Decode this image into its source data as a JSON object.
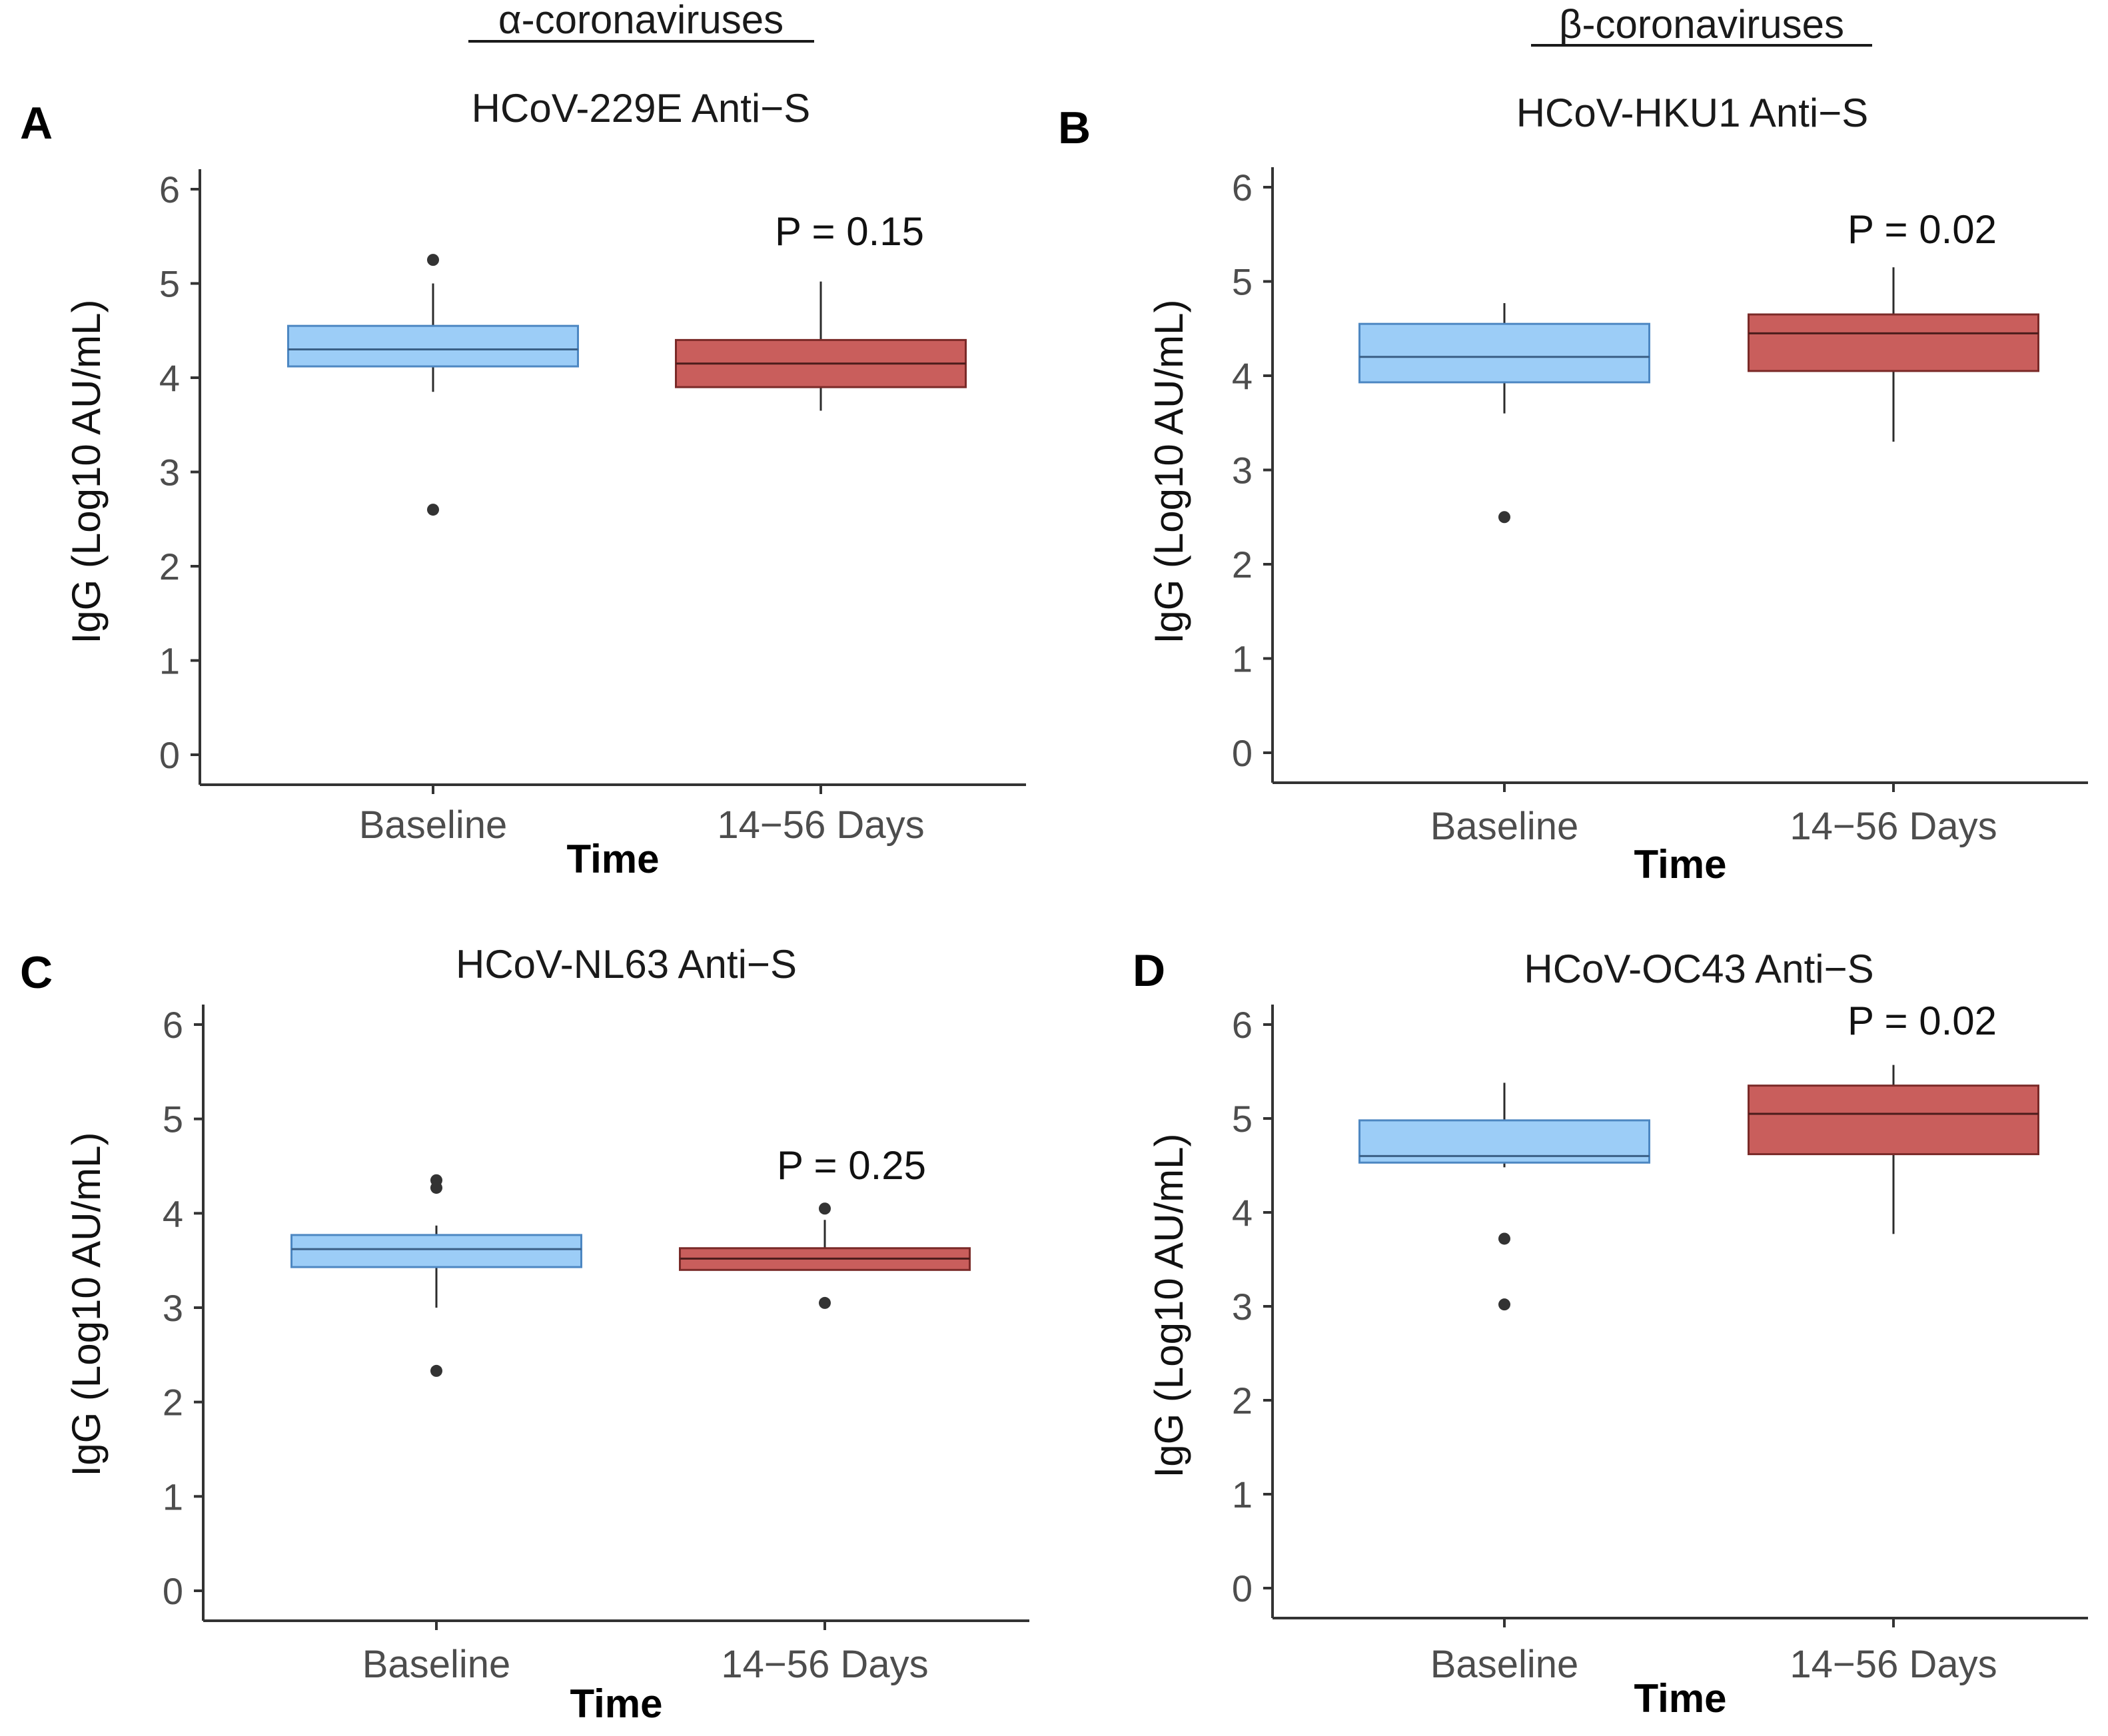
{
  "figure": {
    "groups": [
      {
        "label": "α-coronaviruses"
      },
      {
        "label": "β-coronaviruses"
      }
    ]
  },
  "colors": {
    "baseline_fill": "#9ccdf7",
    "baseline_stroke": "#4d87c2",
    "followup_fill": "#c95e5c",
    "followup_stroke": "#7a2a28",
    "whisker": "#2b2b2b",
    "outlier": "#333333",
    "axis": "#333333",
    "tick_text": "#4d4d4d",
    "title_text": "#1a1a1a"
  },
  "chart_data": [
    {
      "panel": "A",
      "type": "box",
      "title": "HCoV-229E Anti−S",
      "xlabel": "Time",
      "ylabel": "IgG (Log10 AU/mL)",
      "ylim": [
        0,
        6
      ],
      "yticks": [
        "0",
        "1",
        "2",
        "3",
        "4",
        "5",
        "6"
      ],
      "categories": [
        "Baseline",
        "14−56 Days"
      ],
      "pvalue": "P = 0.15",
      "boxes": [
        {
          "category": "Baseline",
          "whisker_low": 3.85,
          "q1": 4.12,
          "median": 4.3,
          "q3": 4.55,
          "whisker_high": 5.0,
          "outliers": [
            5.25,
            2.6
          ]
        },
        {
          "category": "14−56 Days",
          "whisker_low": 3.65,
          "q1": 3.9,
          "median": 4.15,
          "q3": 4.4,
          "whisker_high": 5.02,
          "outliers": []
        }
      ]
    },
    {
      "panel": "B",
      "type": "box",
      "title": "HCoV-HKU1 Anti−S",
      "xlabel": "Time",
      "ylabel": "IgG (Log10 AU/mL)",
      "ylim": [
        0,
        6
      ],
      "yticks": [
        "0",
        "1",
        "2",
        "3",
        "4",
        "5",
        "6"
      ],
      "categories": [
        "Baseline",
        "14−56 Days"
      ],
      "pvalue": "P = 0.02",
      "boxes": [
        {
          "category": "Baseline",
          "whisker_low": 3.6,
          "q1": 3.93,
          "median": 4.2,
          "q3": 4.55,
          "whisker_high": 4.77,
          "outliers": [
            2.5
          ]
        },
        {
          "category": "14−56 Days",
          "whisker_low": 3.3,
          "q1": 4.05,
          "median": 4.45,
          "q3": 4.65,
          "whisker_high": 5.15,
          "outliers": []
        }
      ]
    },
    {
      "panel": "C",
      "type": "box",
      "title": "HCoV-NL63 Anti−S",
      "xlabel": "Time",
      "ylabel": "IgG (Log10 AU/mL)",
      "ylim": [
        0,
        6
      ],
      "yticks": [
        "0",
        "1",
        "2",
        "3",
        "4",
        "5",
        "6"
      ],
      "categories": [
        "Baseline",
        "14−56 Days"
      ],
      "pvalue": "P = 0.25",
      "boxes": [
        {
          "category": "Baseline",
          "whisker_low": 3.0,
          "q1": 3.43,
          "median": 3.62,
          "q3": 3.77,
          "whisker_high": 3.87,
          "outliers": [
            4.35,
            4.27,
            2.33
          ]
        },
        {
          "category": "14−56 Days",
          "whisker_low": 3.4,
          "q1": 3.4,
          "median": 3.52,
          "q3": 3.63,
          "whisker_high": 3.93,
          "outliers": [
            4.05,
            3.05
          ]
        }
      ]
    },
    {
      "panel": "D",
      "type": "box",
      "title": "HCoV-OC43 Anti−S",
      "xlabel": "Time",
      "ylabel": "IgG (Log10 AU/mL)",
      "ylim": [
        0,
        6
      ],
      "yticks": [
        "0",
        "1",
        "2",
        "3",
        "4",
        "5",
        "6"
      ],
      "categories": [
        "Baseline",
        "14−56 Days"
      ],
      "pvalue": "P = 0.02",
      "boxes": [
        {
          "category": "Baseline",
          "whisker_low": 4.48,
          "q1": 4.53,
          "median": 4.6,
          "q3": 4.98,
          "whisker_high": 5.38,
          "outliers": [
            3.72,
            3.02
          ]
        },
        {
          "category": "14−56 Days",
          "whisker_low": 3.77,
          "q1": 4.62,
          "median": 5.05,
          "q3": 5.35,
          "whisker_high": 5.57,
          "outliers": []
        }
      ]
    }
  ]
}
